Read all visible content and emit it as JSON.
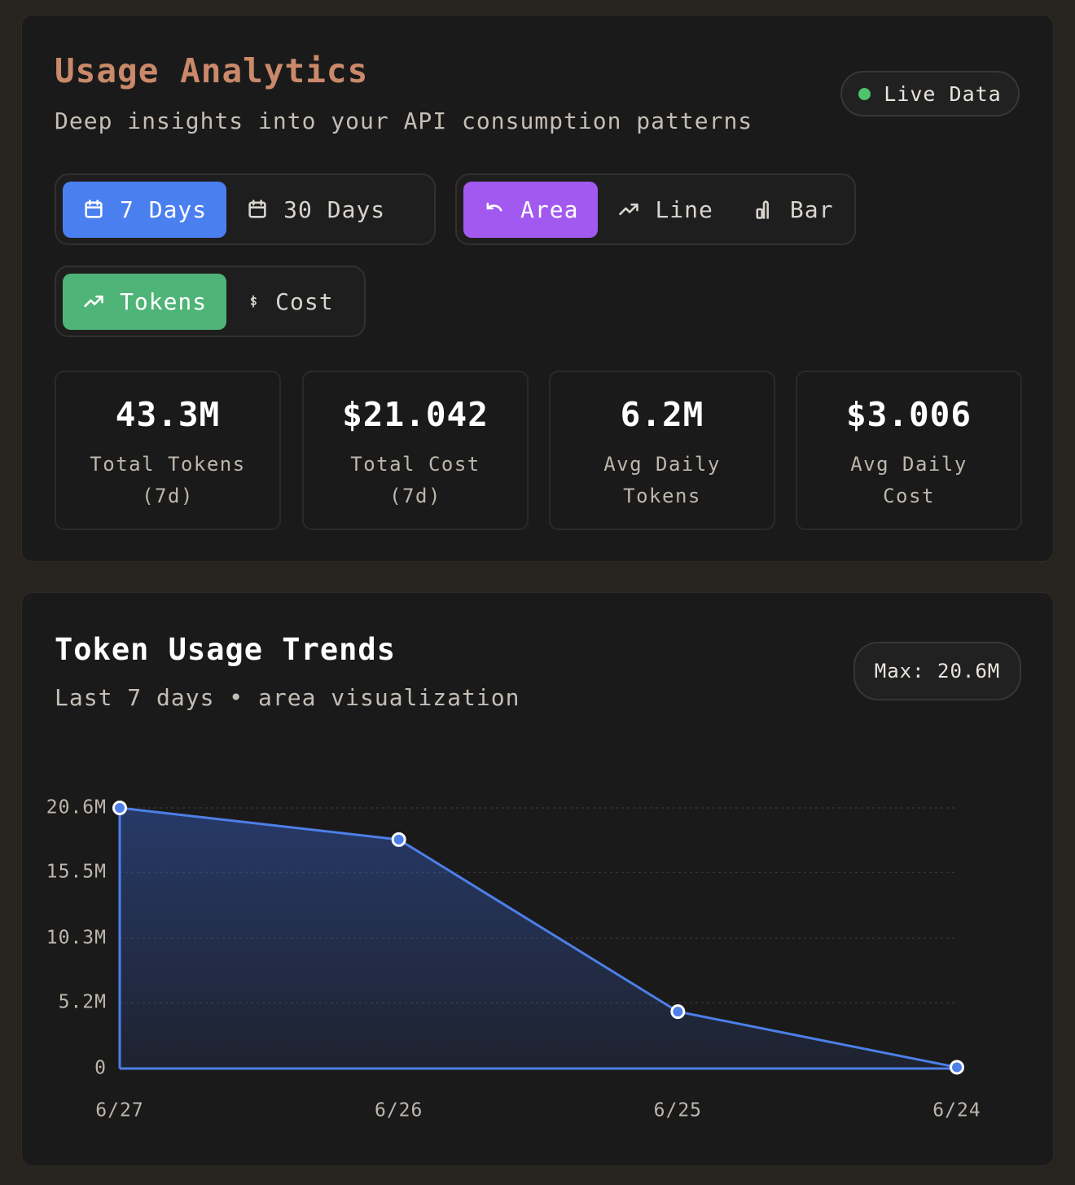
{
  "header": {
    "title": "Usage Analytics",
    "subtitle": "Deep insights into your API consumption patterns",
    "status": "Live Data"
  },
  "controls": {
    "range": [
      {
        "label": "7 Days",
        "active": true
      },
      {
        "label": "30 Days",
        "active": false
      }
    ],
    "chart_type": [
      {
        "label": "Area",
        "active": true
      },
      {
        "label": "Line",
        "active": false
      },
      {
        "label": "Bar",
        "active": false
      }
    ],
    "metric": [
      {
        "label": "Tokens",
        "active": true
      },
      {
        "label": "Cost",
        "active": false
      }
    ]
  },
  "stats": [
    {
      "value": "43.3M",
      "label": "Total Tokens (7d)"
    },
    {
      "value": "$21.042",
      "label": "Total Cost (7d)"
    },
    {
      "value": "6.2M",
      "label": "Avg Daily Tokens"
    },
    {
      "value": "$3.006",
      "label": "Avg Daily Cost"
    }
  ],
  "chart_panel": {
    "title": "Token Usage Trends",
    "subtitle": "Last 7 days • area visualization",
    "max_badge": "Max: 20.6M"
  },
  "chart_data": {
    "type": "area",
    "categories": [
      "6/27",
      "6/26",
      "6/25",
      "6/24"
    ],
    "values": [
      20.6,
      18.1,
      4.5,
      0.1
    ],
    "color": "#4d7fe8",
    "ylim": [
      0,
      20.6
    ],
    "yticks": [
      0,
      {
        "value": 5.2,
        "label": "5.2M"
      },
      {
        "value": 10.3,
        "label": "10.3M"
      },
      {
        "value": 15.5,
        "label": "15.5M"
      },
      {
        "value": 20.6,
        "label": "20.6M"
      }
    ],
    "grid": true
  }
}
